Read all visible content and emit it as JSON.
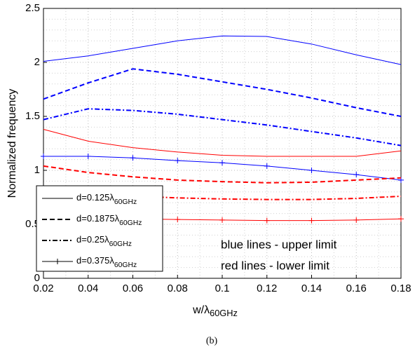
{
  "chart_data": {
    "type": "line",
    "x_label": "w/λ60GHz",
    "y_label": "Normalized frequency",
    "caption": "(b)",
    "x": [
      0.02,
      0.04,
      0.06,
      0.08,
      0.1,
      0.12,
      0.14,
      0.16,
      0.18
    ],
    "xlim": [
      0.02,
      0.18
    ],
    "xticks": [
      0.02,
      0.04,
      0.06,
      0.08,
      0.1,
      0.12,
      0.14,
      0.16,
      0.18
    ],
    "ylim": [
      0,
      2.5
    ],
    "yticks": [
      0,
      0.5,
      1,
      1.5,
      2,
      2.5
    ],
    "grid": true,
    "minor_grid": true,
    "legend_position": "lower left",
    "legend_color": "#000000",
    "series": [
      {
        "name": "d=0.125λ60GHz",
        "color": "#0000ff",
        "style": "solid",
        "values": [
          2.01,
          2.06,
          2.13,
          2.2,
          2.245,
          2.24,
          2.17,
          2.07,
          1.98
        ]
      },
      {
        "name": "d=0.1875λ60GHz",
        "color": "#0000ff",
        "style": "dashed",
        "values": [
          1.66,
          1.81,
          1.94,
          1.89,
          1.82,
          1.75,
          1.67,
          1.58,
          1.5
        ]
      },
      {
        "name": "d=0.25λ60GHz",
        "color": "#0000ff",
        "style": "dashdot",
        "values": [
          1.47,
          1.57,
          1.555,
          1.52,
          1.47,
          1.42,
          1.36,
          1.3,
          1.23
        ]
      },
      {
        "name": "d=0.375λ60GHz",
        "color": "#0000ff",
        "style": "plus",
        "values": [
          1.13,
          1.13,
          1.115,
          1.09,
          1.07,
          1.04,
          1.0,
          0.96,
          0.91
        ]
      },
      {
        "color": "#ff0000",
        "style": "solid",
        "values": [
          1.38,
          1.27,
          1.21,
          1.17,
          1.14,
          1.13,
          1.13,
          1.13,
          1.18
        ]
      },
      {
        "color": "#ff0000",
        "style": "dashed",
        "values": [
          1.04,
          0.98,
          0.94,
          0.91,
          0.895,
          0.885,
          0.89,
          0.91,
          0.93
        ]
      },
      {
        "color": "#ff0000",
        "style": "dashdot",
        "values": [
          0.82,
          0.79,
          0.76,
          0.745,
          0.735,
          0.73,
          0.73,
          0.74,
          0.76
        ]
      },
      {
        "color": "#ff0000",
        "style": "plus",
        "values": [
          0.58,
          0.56,
          0.55,
          0.545,
          0.54,
          0.535,
          0.535,
          0.54,
          0.55
        ]
      }
    ],
    "annotations": [
      {
        "text": "blue lines - upper limit",
        "color": "#0000ff"
      },
      {
        "text": "red lines - lower limit",
        "color": "#ff0000"
      }
    ]
  }
}
